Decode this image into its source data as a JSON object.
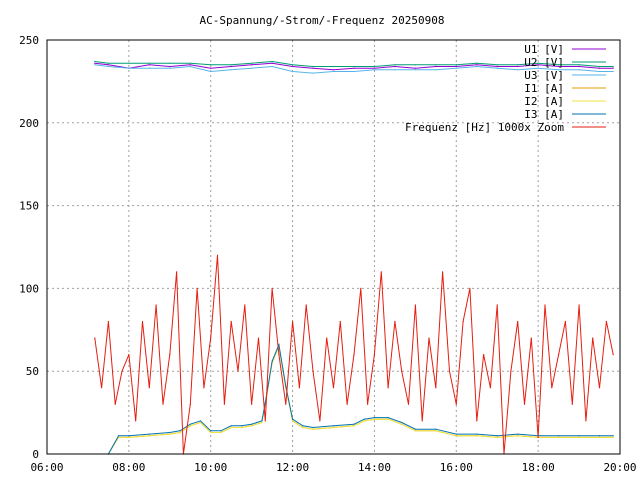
{
  "chart_data": {
    "type": "line",
    "title": "AC-Spannung/-Strom/-Frequenz 20250908",
    "xlabel": "",
    "ylabel": "",
    "xlim": [
      "06:00",
      "20:00"
    ],
    "ylim": [
      0,
      250
    ],
    "grid": true,
    "legend_position": "top-right",
    "x_ticks": [
      "06:00",
      "08:00",
      "10:00",
      "12:00",
      "14:00",
      "16:00",
      "18:00",
      "20:00"
    ],
    "y_ticks": [
      0,
      50,
      100,
      150,
      200,
      250
    ],
    "series": [
      {
        "name": "U1 [V]",
        "color": "#9400d3",
        "x": [
          "07:10",
          "07:30",
          "08:00",
          "08:30",
          "09:00",
          "09:30",
          "10:00",
          "10:30",
          "11:00",
          "11:30",
          "12:00",
          "12:30",
          "13:00",
          "13:30",
          "14:00",
          "14:30",
          "15:00",
          "15:30",
          "16:00",
          "16:30",
          "17:00",
          "17:30",
          "18:00",
          "18:30",
          "19:00",
          "19:30",
          "19:50"
        ],
        "y": [
          236,
          235,
          233,
          235,
          234,
          235,
          233,
          234,
          235,
          236,
          234,
          233,
          232,
          233,
          233,
          234,
          233,
          234,
          234,
          235,
          234,
          234,
          235,
          234,
          234,
          233,
          233
        ]
      },
      {
        "name": "U2 [V]",
        "color": "#009e73",
        "x": [
          "07:10",
          "07:30",
          "08:00",
          "08:30",
          "09:00",
          "09:30",
          "10:00",
          "10:30",
          "11:00",
          "11:30",
          "12:00",
          "12:30",
          "13:00",
          "13:30",
          "14:00",
          "14:30",
          "15:00",
          "15:30",
          "16:00",
          "16:30",
          "17:00",
          "17:30",
          "18:00",
          "18:30",
          "19:00",
          "19:30",
          "19:50"
        ],
        "y": [
          237,
          236,
          236,
          236,
          236,
          236,
          235,
          235,
          236,
          237,
          235,
          234,
          234,
          234,
          234,
          235,
          235,
          235,
          235,
          236,
          235,
          235,
          236,
          235,
          235,
          234,
          234
        ]
      },
      {
        "name": "U3 [V]",
        "color": "#56b4e9",
        "x": [
          "07:10",
          "07:30",
          "08:00",
          "08:30",
          "09:00",
          "09:30",
          "10:00",
          "10:30",
          "11:00",
          "11:30",
          "12:00",
          "12:30",
          "13:00",
          "13:30",
          "14:00",
          "14:30",
          "15:00",
          "15:30",
          "16:00",
          "16:30",
          "17:00",
          "17:30",
          "18:00",
          "18:30",
          "19:00",
          "19:30",
          "19:50"
        ],
        "y": [
          235,
          234,
          233,
          233,
          233,
          234,
          231,
          232,
          233,
          234,
          231,
          230,
          231,
          231,
          232,
          232,
          232,
          232,
          233,
          234,
          233,
          232,
          233,
          232,
          232,
          231,
          231
        ]
      },
      {
        "name": "I1 [A]",
        "color": "#e69f00",
        "x": [
          "07:30",
          "07:45",
          "08:00",
          "08:30",
          "09:00",
          "09:15",
          "09:30",
          "09:45",
          "10:00",
          "10:15",
          "10:30",
          "10:45",
          "11:00",
          "11:15",
          "11:20",
          "11:30",
          "11:40",
          "11:50",
          "12:00",
          "12:15",
          "12:30",
          "13:00",
          "13:30",
          "13:45",
          "14:00",
          "14:20",
          "14:40",
          "15:00",
          "15:30",
          "16:00",
          "16:30",
          "17:00",
          "17:30",
          "18:00",
          "18:30",
          "19:00",
          "19:30",
          "19:50"
        ],
        "y": [
          0,
          10,
          10,
          11,
          12,
          13,
          17,
          19,
          13,
          13,
          16,
          16,
          17,
          19,
          30,
          55,
          65,
          40,
          20,
          16,
          15,
          16,
          17,
          20,
          21,
          21,
          18,
          14,
          14,
          11,
          11,
          10,
          11,
          10,
          10,
          10,
          10,
          10
        ]
      },
      {
        "name": "I2 [A]",
        "color": "#f0e442",
        "x": [
          "07:30",
          "07:45",
          "08:00",
          "08:30",
          "09:00",
          "09:15",
          "09:30",
          "09:45",
          "10:00",
          "10:15",
          "10:30",
          "10:45",
          "11:00",
          "11:15",
          "11:20",
          "11:30",
          "11:40",
          "11:50",
          "12:00",
          "12:15",
          "12:30",
          "13:00",
          "13:30",
          "13:45",
          "14:00",
          "14:20",
          "14:40",
          "15:00",
          "15:30",
          "16:00",
          "16:30",
          "17:00",
          "17:30",
          "18:00",
          "18:30",
          "19:00",
          "19:30",
          "19:50"
        ],
        "y": [
          0,
          10,
          10,
          11,
          12,
          13,
          17,
          19,
          13,
          13,
          16,
          16,
          17,
          19,
          30,
          55,
          65,
          40,
          20,
          16,
          15,
          16,
          17,
          20,
          21,
          21,
          18,
          14,
          14,
          11,
          11,
          10,
          11,
          10,
          10,
          10,
          10,
          10
        ]
      },
      {
        "name": "I3 [A]",
        "color": "#0072b2",
        "x": [
          "07:30",
          "07:45",
          "08:00",
          "08:30",
          "09:00",
          "09:15",
          "09:30",
          "09:45",
          "10:00",
          "10:15",
          "10:30",
          "10:45",
          "11:00",
          "11:15",
          "11:20",
          "11:30",
          "11:40",
          "11:50",
          "12:00",
          "12:15",
          "12:30",
          "13:00",
          "13:30",
          "13:45",
          "14:00",
          "14:20",
          "14:40",
          "15:00",
          "15:30",
          "16:00",
          "16:30",
          "17:00",
          "17:30",
          "18:00",
          "18:30",
          "19:00",
          "19:30",
          "19:50"
        ],
        "y": [
          0,
          11,
          11,
          12,
          13,
          14,
          18,
          20,
          14,
          14,
          17,
          17,
          18,
          20,
          31,
          56,
          66,
          41,
          21,
          17,
          16,
          17,
          18,
          21,
          22,
          22,
          19,
          15,
          15,
          12,
          12,
          11,
          12,
          11,
          11,
          11,
          11,
          11
        ]
      },
      {
        "name": "Frequenz [Hz] 1000x Zoom",
        "color": "#e51e10",
        "x": [
          "07:10",
          "07:20",
          "07:30",
          "07:40",
          "07:50",
          "08:00",
          "08:10",
          "08:20",
          "08:30",
          "08:40",
          "08:50",
          "09:00",
          "09:10",
          "09:20",
          "09:30",
          "09:40",
          "09:50",
          "10:00",
          "10:10",
          "10:20",
          "10:30",
          "10:40",
          "10:50",
          "11:00",
          "11:10",
          "11:20",
          "11:30",
          "11:40",
          "11:50",
          "12:00",
          "12:10",
          "12:20",
          "12:30",
          "12:40",
          "12:50",
          "13:00",
          "13:10",
          "13:20",
          "13:30",
          "13:40",
          "13:50",
          "14:00",
          "14:10",
          "14:20",
          "14:30",
          "14:40",
          "14:50",
          "15:00",
          "15:10",
          "15:20",
          "15:30",
          "15:40",
          "15:50",
          "16:00",
          "16:10",
          "16:20",
          "16:30",
          "16:40",
          "16:50",
          "17:00",
          "17:10",
          "17:20",
          "17:30",
          "17:40",
          "17:50",
          "18:00",
          "18:10",
          "18:20",
          "18:30",
          "18:40",
          "18:50",
          "19:00",
          "19:10",
          "19:20",
          "19:30",
          "19:40",
          "19:50"
        ],
        "y": [
          70,
          40,
          80,
          30,
          50,
          60,
          20,
          80,
          40,
          90,
          30,
          60,
          110,
          0,
          30,
          100,
          40,
          70,
          120,
          30,
          80,
          50,
          90,
          30,
          70,
          20,
          100,
          60,
          30,
          80,
          40,
          90,
          50,
          20,
          70,
          40,
          80,
          30,
          60,
          100,
          30,
          60,
          110,
          40,
          80,
          50,
          30,
          90,
          20,
          70,
          40,
          110,
          50,
          30,
          80,
          100,
          20,
          60,
          40,
          90,
          0,
          50,
          80,
          30,
          70,
          10,
          90,
          40,
          60,
          80,
          30,
          90,
          20,
          70,
          40,
          80,
          60
        ]
      }
    ]
  }
}
